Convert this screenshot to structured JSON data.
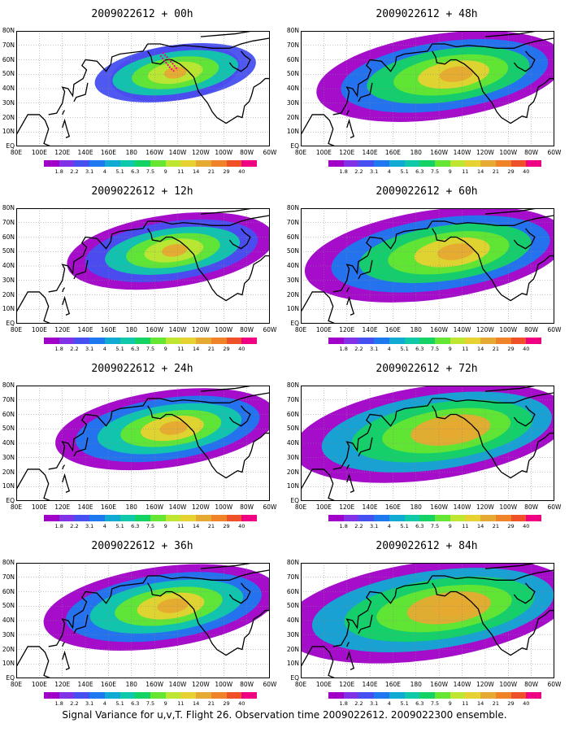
{
  "caption": "Signal Variance for u,v,T. Flight 26. Observation time 2009022612. 2009022300 ensemble.",
  "lat_labels": [
    "80N",
    "70N",
    "60N",
    "50N",
    "40N",
    "30N",
    "20N",
    "10N",
    "EQ"
  ],
  "lon_labels": [
    "80E",
    "100E",
    "120E",
    "140E",
    "160E",
    "180",
    "160W",
    "140W",
    "120W",
    "100W",
    "80W",
    "60W"
  ],
  "colorbar": {
    "levels": [
      "1.8",
      "2.2",
      "3.1",
      "4",
      "5.1",
      "6.3",
      "7.5",
      "9",
      "11",
      "14",
      "21",
      "29",
      "40"
    ],
    "colors": [
      "#a000c8",
      "#8232e6",
      "#4650f0",
      "#1e78f0",
      "#10aad2",
      "#10c8aa",
      "#14d264",
      "#64e632",
      "#bee632",
      "#e6d232",
      "#e6aa32",
      "#f08228",
      "#f05028",
      "#f00082"
    ]
  },
  "panels": [
    {
      "title": "2009022612 + 00h",
      "lead_h": 0
    },
    {
      "title": "2009022612 + 48h",
      "lead_h": 48
    },
    {
      "title": "2009022612 + 12h",
      "lead_h": 12
    },
    {
      "title": "2009022612 + 60h",
      "lead_h": 60
    },
    {
      "title": "2009022612 + 24h",
      "lead_h": 24
    },
    {
      "title": "2009022612 + 72h",
      "lead_h": 72
    },
    {
      "title": "2009022612 + 36h",
      "lead_h": 36
    },
    {
      "title": "2009022612 + 84h",
      "lead_h": 84
    }
  ]
}
